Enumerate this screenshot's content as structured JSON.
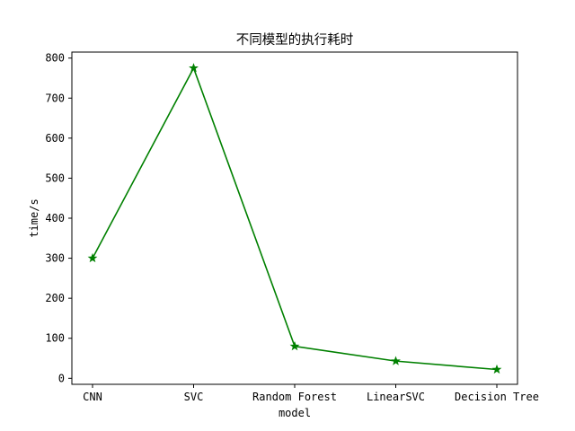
{
  "chart_data": {
    "type": "line",
    "title": "不同模型的执行耗时",
    "xlabel": "model",
    "ylabel": "time/s",
    "categories": [
      "CNN",
      "SVC",
      "Random Forest",
      "LinearSVC",
      "Decision Tree"
    ],
    "series": [
      {
        "values": [
          300,
          775,
          80,
          43,
          22
        ],
        "color": "#008000",
        "marker": "star"
      }
    ],
    "ylim": [
      -15,
      815
    ],
    "yticks": [
      0,
      100,
      200,
      300,
      400,
      500,
      600,
      700,
      800
    ],
    "grid": false,
    "legend": "none"
  }
}
